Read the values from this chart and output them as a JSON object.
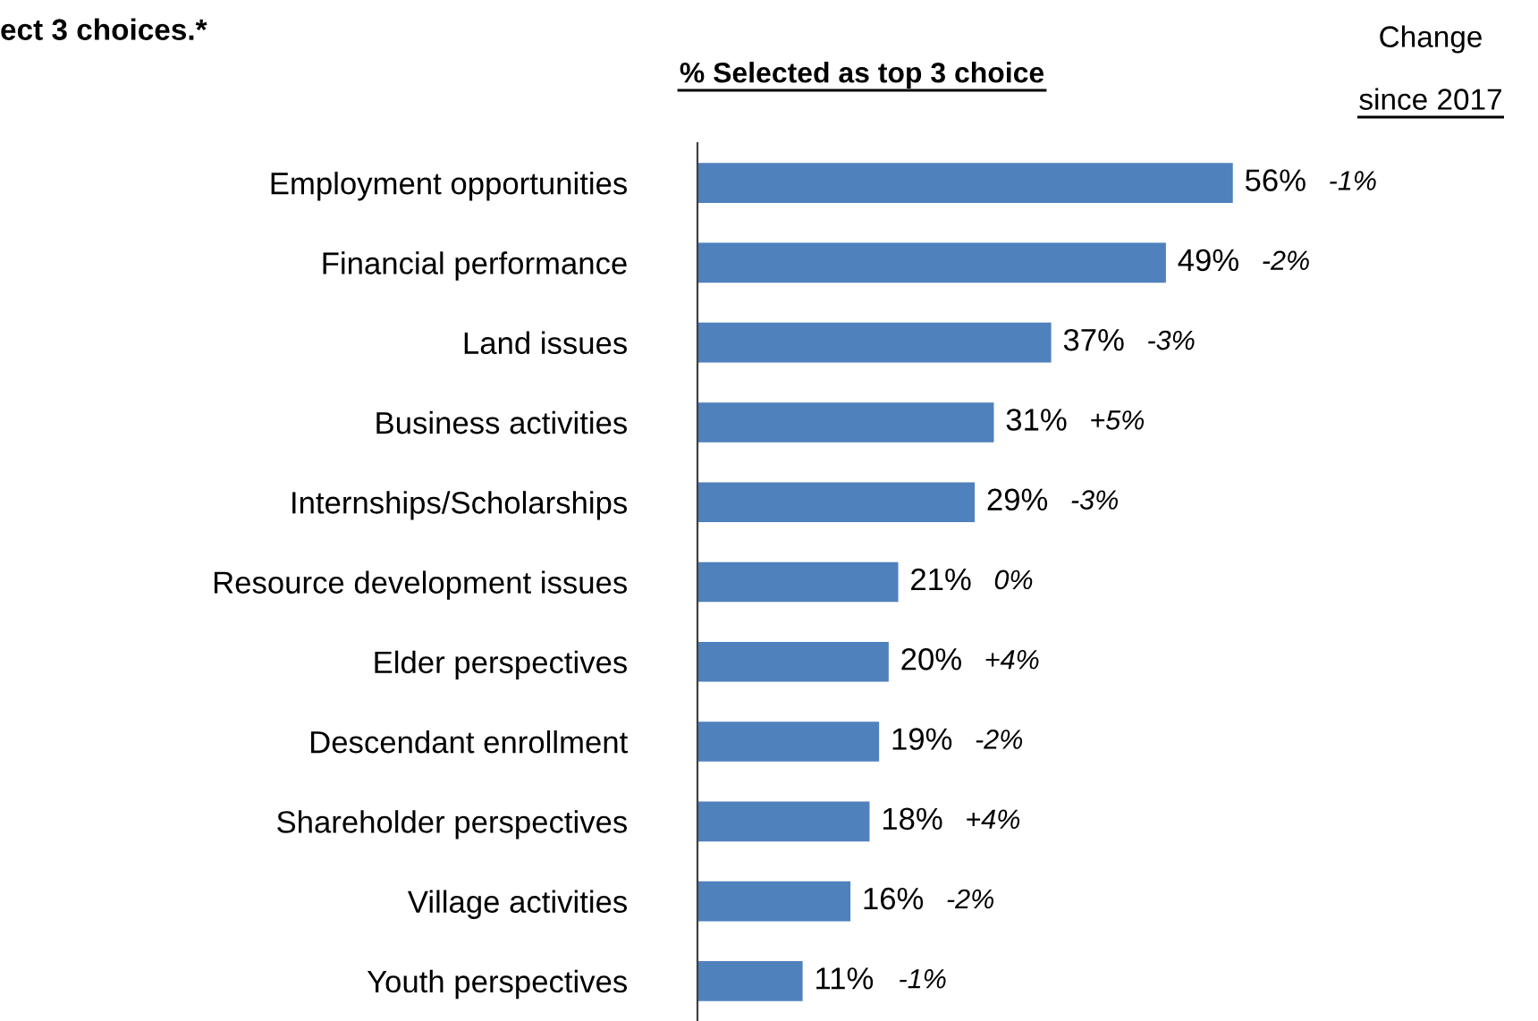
{
  "chart_data": {
    "type": "bar",
    "orientation": "horizontal",
    "title": "ect 3 choices.*",
    "subtitle": "% Selected as top 3 choice",
    "categories": [
      "Employment opportunities",
      "Financial performance",
      "Land issues",
      "Business activities",
      "Internships/Scholarships",
      "Resource development issues",
      "Elder perspectives",
      "Descendant enrollment",
      "Shareholder perspectives",
      "Village activities",
      "Youth perspectives"
    ],
    "values": [
      56,
      49,
      37,
      31,
      29,
      21,
      20,
      19,
      18,
      16,
      11
    ],
    "value_labels": [
      "56%",
      "49%",
      "37%",
      "31%",
      "29%",
      "21%",
      "20%",
      "19%",
      "18%",
      "16%",
      "11%"
    ],
    "color": "#4f81bd",
    "grid": false,
    "legend": false,
    "annotations": [
      "Change since 2017",
      "-1%",
      "-2%",
      "-3%",
      "+5%",
      "-3%",
      "0%",
      "+4%",
      "-2%",
      "+4%",
      "-2%",
      "-1%"
    ]
  }
}
